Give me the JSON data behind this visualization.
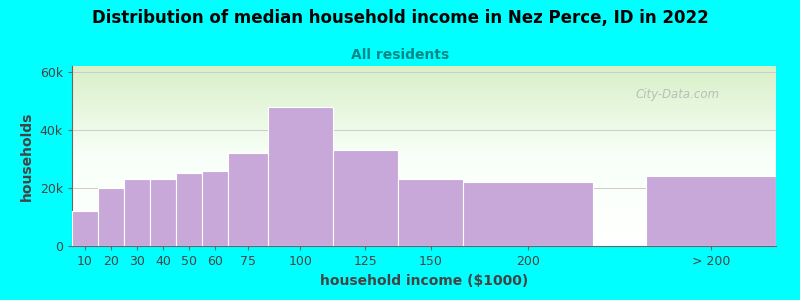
{
  "title": "Distribution of median household income in Nez Perce, ID in 2022",
  "subtitle": "All residents",
  "xlabel": "household income ($1000)",
  "ylabel": "households",
  "bar_labels": [
    "10",
    "20",
    "30",
    "40",
    "50",
    "60",
    "75",
    "100",
    "125",
    "150",
    "200",
    "> 200"
  ],
  "bar_values": [
    12000,
    20000,
    23000,
    23000,
    25000,
    26000,
    32000,
    48000,
    33000,
    23000,
    22000,
    24000
  ],
  "bar_color": "#C8A8D8",
  "bar_edge_color": "#ffffff",
  "background_color": "#00FFFF",
  "ylim": [
    0,
    62000
  ],
  "yticks": [
    0,
    20000,
    40000,
    60000
  ],
  "ytick_labels": [
    "0",
    "20k",
    "40k",
    "60k"
  ],
  "title_fontsize": 12,
  "subtitle_fontsize": 10,
  "axis_label_fontsize": 10,
  "tick_fontsize": 9,
  "watermark": "City-Data.com",
  "title_color": "#000000",
  "subtitle_color": "#008888",
  "axis_label_color": "#444444",
  "tick_color": "#444444",
  "grid_color": "#cccccc",
  "bar_widths": [
    10,
    10,
    10,
    10,
    10,
    10,
    15,
    25,
    25,
    25,
    50,
    50
  ],
  "bar_lefts": [
    5,
    15,
    25,
    35,
    45,
    55,
    65,
    80,
    105,
    130,
    155,
    225
  ]
}
